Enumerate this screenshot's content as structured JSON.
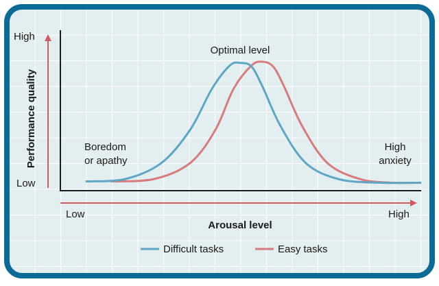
{
  "chart_data": {
    "type": "line",
    "title": "",
    "xlabel": "Arousal level",
    "ylabel": "Performance quality",
    "x_ticks": {
      "low": "Low",
      "high": "High"
    },
    "y_ticks": {
      "low": "Low",
      "high": "High"
    },
    "xlim": [
      0,
      1
    ],
    "ylim": [
      0,
      1
    ],
    "grid": true,
    "legend_position": "bottom-center",
    "annotations": {
      "optimal": "Optimal level",
      "boredom_1": "Boredom",
      "boredom_2": "or apathy",
      "anxiety_1": "High",
      "anxiety_2": "anxiety"
    },
    "series": [
      {
        "name": "Difficult tasks",
        "color": "#5fa6c4",
        "x": [
          0.07,
          0.18,
          0.28,
          0.36,
          0.42,
          0.47,
          0.5,
          0.53,
          0.56,
          0.61,
          0.68,
          0.77,
          0.88,
          1.0
        ],
        "y": [
          0.03,
          0.05,
          0.18,
          0.45,
          0.78,
          0.97,
          0.99,
          0.96,
          0.8,
          0.48,
          0.18,
          0.05,
          0.02,
          0.02
        ]
      },
      {
        "name": "Easy tasks",
        "color": "#d77b7b",
        "x": [
          0.14,
          0.26,
          0.36,
          0.43,
          0.48,
          0.53,
          0.56,
          0.59,
          0.62,
          0.67,
          0.74,
          0.83,
          0.92,
          1.0
        ],
        "y": [
          0.03,
          0.05,
          0.18,
          0.45,
          0.78,
          0.97,
          1.0,
          0.96,
          0.8,
          0.48,
          0.18,
          0.05,
          0.02,
          0.02
        ]
      }
    ]
  }
}
